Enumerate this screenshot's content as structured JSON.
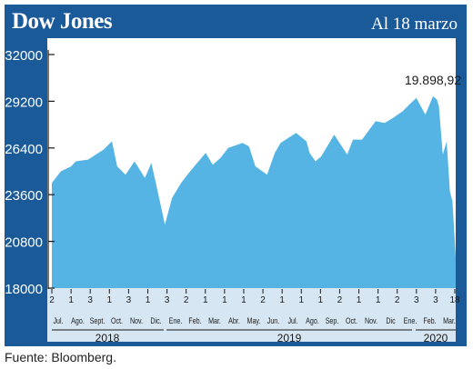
{
  "header": {
    "title": "Dow Jones",
    "date_label": "Al 18 marzo"
  },
  "colors": {
    "frame": "#1b5a99",
    "area_fill": "#55b4e3",
    "band": "#d6e6f3"
  },
  "source": "Fuente: Bloomberg.",
  "chart_data": {
    "type": "area",
    "title": "Dow Jones",
    "ylim": [
      18000,
      32000
    ],
    "y_ticks": [
      "32000",
      "29200",
      "26400",
      "23600",
      "20800",
      "18000"
    ],
    "annotation": "19.898,92",
    "week_ticks": [
      "2",
      "1",
      "3",
      "1",
      "3",
      "1",
      "3",
      "2",
      "1",
      "1",
      "1",
      "2",
      "1",
      "1",
      "1",
      "2",
      "1",
      "1",
      "2",
      "3",
      "3",
      "18"
    ],
    "months": [
      "Jul.",
      "Ago.",
      "Sept.",
      "Oct.",
      "Nov.",
      "Dic.",
      "Ene.",
      "Feb.",
      "Mar.",
      "Abr.",
      "May.",
      "Jun.",
      "Jul.",
      "Ago.",
      "Sep.",
      "Oct.",
      "Nov.",
      "Dic",
      "Ene.",
      "Feb.",
      "Mar."
    ],
    "years": [
      "2018",
      "2019",
      "2020"
    ],
    "x": [
      "2018-07-02",
      "2018-07-16",
      "2018-08-01",
      "2018-08-08",
      "2018-08-27",
      "2018-09-20",
      "2018-10-03",
      "2018-10-11",
      "2018-10-24",
      "2018-11-07",
      "2018-11-23",
      "2018-12-03",
      "2018-12-14",
      "2018-12-24",
      "2019-01-04",
      "2019-01-18",
      "2019-02-01",
      "2019-02-25",
      "2019-03-08",
      "2019-03-20",
      "2019-04-01",
      "2019-04-23",
      "2019-05-03",
      "2019-05-13",
      "2019-05-31",
      "2019-06-12",
      "2019-06-21",
      "2019-07-15",
      "2019-07-31",
      "2019-08-05",
      "2019-08-14",
      "2019-08-23",
      "2019-09-12",
      "2019-10-02",
      "2019-10-11",
      "2019-10-25",
      "2019-11-15",
      "2019-11-29",
      "2019-12-12",
      "2019-12-27",
      "2020-01-06",
      "2020-01-17",
      "2020-01-31",
      "2020-02-12",
      "2020-02-18",
      "2020-02-21",
      "2020-02-27",
      "2020-03-04",
      "2020-03-09",
      "2020-03-13",
      "2020-03-18"
    ],
    "values": [
      24300,
      25000,
      25300,
      25600,
      25700,
      26300,
      26800,
      25300,
      24800,
      25600,
      24600,
      25500,
      23600,
      21800,
      23400,
      24300,
      25000,
      26100,
      25400,
      25800,
      26400,
      26700,
      26500,
      25300,
      24800,
      26100,
      26700,
      27300,
      26800,
      26100,
      25600,
      25900,
      27200,
      26000,
      26900,
      26900,
      28000,
      27900,
      28200,
      28600,
      29000,
      29400,
      28400,
      29500,
      29300,
      28900,
      26000,
      26800,
      23800,
      23200,
      19898.92
    ]
  }
}
